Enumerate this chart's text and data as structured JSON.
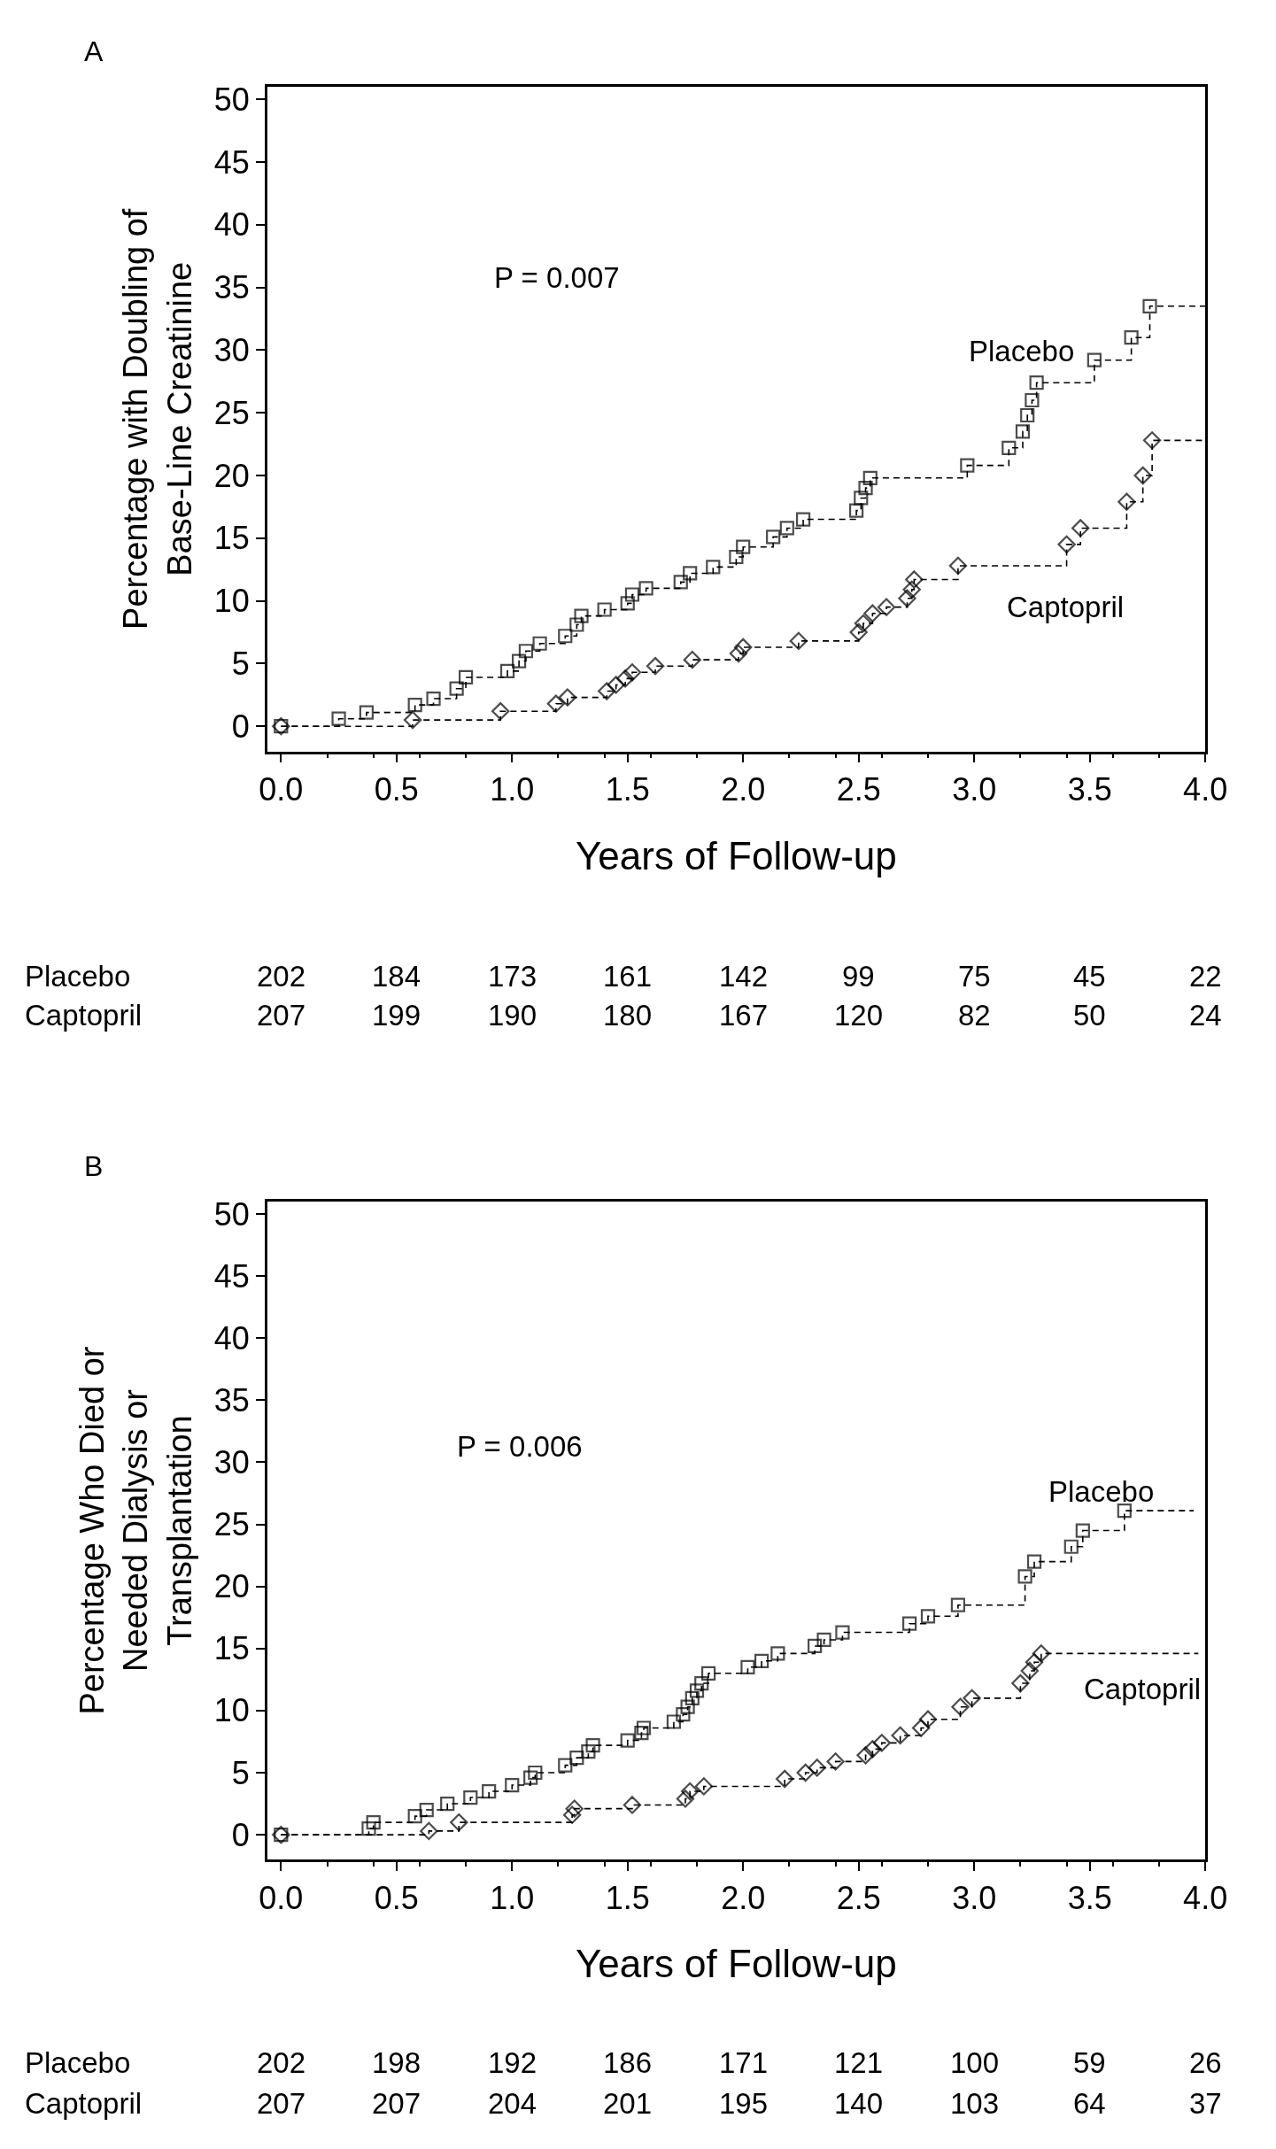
{
  "chart_data": [
    {
      "type": "step",
      "title": "A",
      "xlabel": "Years of Follow-up",
      "ylabel": "Percentage with Doubling of Base-Line Creatinine",
      "xlim": [
        -0.06,
        4.0
      ],
      "ylim": [
        -2,
        51
      ],
      "yticks": [
        0,
        5,
        10,
        15,
        20,
        25,
        30,
        35,
        40,
        45,
        50
      ],
      "xticks": [
        {
          "value": 0,
          "label": "0.0"
        },
        {
          "value": 0.5,
          "label": "0.5"
        },
        {
          "value": 1,
          "label": "1.0"
        },
        {
          "value": 1.5,
          "label": "1.5"
        },
        {
          "value": 2,
          "label": "2.0"
        },
        {
          "value": 2.5,
          "label": "2.5"
        },
        {
          "value": 3,
          "label": "3.0"
        },
        {
          "value": 3.5,
          "label": "3.5"
        },
        {
          "value": 4,
          "label": "4.0"
        }
      ],
      "line_style": "dashed",
      "series": [
        {
          "name": "Placebo",
          "color": "#000000",
          "marker": "square",
          "x": [
            0,
            0.25,
            0.37,
            0.58,
            0.66,
            0.76,
            0.8,
            0.98,
            1.03,
            1.06,
            1.12,
            1.23,
            1.28,
            1.3,
            1.4,
            1.5,
            1.52,
            1.58,
            1.73,
            1.77,
            1.87,
            1.97,
            2.0,
            2.13,
            2.19,
            2.26,
            2.49,
            2.51,
            2.53,
            2.55,
            2.97,
            3.15,
            3.21,
            3.23,
            3.25,
            3.27,
            3.52,
            3.68,
            3.76,
            4.0
          ],
          "values": [
            0,
            0.6,
            1.1,
            1.7,
            2.2,
            3.0,
            3.9,
            4.4,
            5.2,
            6.0,
            6.6,
            7.2,
            8.1,
            8.8,
            9.3,
            9.8,
            10.5,
            11.0,
            11.5,
            12.2,
            12.7,
            13.5,
            14.3,
            15.1,
            15.8,
            16.5,
            17.2,
            18.2,
            19.0,
            19.8,
            20.8,
            22.2,
            23.5,
            24.8,
            26.0,
            27.4,
            29.2,
            31.0,
            33.5,
            33.5
          ]
        },
        {
          "name": "Captopril",
          "color": "#000000",
          "marker": "diamond",
          "x": [
            0,
            0.57,
            0.95,
            1.19,
            1.24,
            1.41,
            1.45,
            1.49,
            1.52,
            1.62,
            1.78,
            1.98,
            2.0,
            2.24,
            2.5,
            2.52,
            2.56,
            2.62,
            2.71,
            2.73,
            2.74,
            2.93,
            3.4,
            3.46,
            3.66,
            3.73,
            3.77,
            4.0
          ],
          "values": [
            0,
            0.5,
            1.2,
            1.8,
            2.3,
            2.8,
            3.3,
            3.8,
            4.3,
            4.8,
            5.3,
            5.8,
            6.3,
            6.8,
            7.5,
            8.2,
            9.0,
            9.5,
            10.2,
            10.9,
            11.7,
            12.8,
            14.5,
            15.8,
            17.9,
            20.0,
            22.8,
            22.8
          ]
        }
      ],
      "annotations": [
        "P = 0.007",
        "Placebo",
        "202",
        "184",
        "173",
        "161",
        "142",
        "99",
        "75",
        "45",
        "22",
        "Captopril",
        "207",
        "199",
        "190",
        "180",
        "167",
        "120",
        "82",
        "50",
        "24"
      ]
    },
    {
      "type": "step",
      "title": "B",
      "xlabel": "Years of Follow-up",
      "ylabel": "Percentage Who Died or Needed Dialysis or Transplantation",
      "xlim": [
        -0.06,
        4.0
      ],
      "ylim": [
        -2,
        51
      ],
      "yticks": [
        0,
        5,
        10,
        15,
        20,
        25,
        30,
        35,
        40,
        45,
        50
      ],
      "xticks": [
        {
          "value": 0,
          "label": "0.0"
        },
        {
          "value": 0.5,
          "label": "0.5"
        },
        {
          "value": 1,
          "label": "1.0"
        },
        {
          "value": 1.5,
          "label": "1.5"
        },
        {
          "value": 2,
          "label": "2.0"
        },
        {
          "value": 2.5,
          "label": "2.5"
        },
        {
          "value": 3,
          "label": "3.0"
        },
        {
          "value": 3.5,
          "label": "3.5"
        },
        {
          "value": 4,
          "label": "4.0"
        }
      ],
      "line_style": "dashed",
      "series": [
        {
          "name": "Placebo",
          "color": "#000000",
          "marker": "square",
          "x": [
            0,
            0.38,
            0.4,
            0.58,
            0.63,
            0.72,
            0.82,
            0.9,
            1.0,
            1.08,
            1.1,
            1.23,
            1.28,
            1.33,
            1.35,
            1.5,
            1.56,
            1.57,
            1.7,
            1.74,
            1.76,
            1.78,
            1.8,
            1.82,
            1.85,
            2.02,
            2.08,
            2.15,
            2.31,
            2.35,
            2.43,
            2.72,
            2.8,
            2.93,
            3.22,
            3.26,
            3.42,
            3.47,
            3.65,
            3.95
          ],
          "values": [
            0,
            0.5,
            1.0,
            1.5,
            2.0,
            2.5,
            3.0,
            3.5,
            4.0,
            4.6,
            5.0,
            5.6,
            6.2,
            6.7,
            7.2,
            7.6,
            8.2,
            8.6,
            9.1,
            9.7,
            10.3,
            11.0,
            11.6,
            12.2,
            13.0,
            13.5,
            14.0,
            14.6,
            15.2,
            15.7,
            16.3,
            17.0,
            17.6,
            18.5,
            20.8,
            22.0,
            23.2,
            24.5,
            26.1,
            26.1
          ]
        },
        {
          "name": "Captopril",
          "color": "#000000",
          "marker": "diamond",
          "x": [
            0,
            0.64,
            0.77,
            1.26,
            1.27,
            1.52,
            1.75,
            1.77,
            1.83,
            2.18,
            2.27,
            2.32,
            2.4,
            2.53,
            2.56,
            2.6,
            2.68,
            2.77,
            2.8,
            2.94,
            2.99,
            3.2,
            3.24,
            3.26,
            3.29,
            3.97
          ],
          "values": [
            0,
            0.3,
            1.0,
            1.6,
            2.1,
            2.4,
            2.9,
            3.5,
            3.9,
            4.5,
            5.0,
            5.4,
            5.9,
            6.4,
            6.9,
            7.4,
            8.0,
            8.6,
            9.3,
            10.3,
            11.0,
            12.2,
            13.2,
            13.9,
            14.6,
            14.6
          ]
        }
      ],
      "annotations": [
        "P = 0.006",
        "Placebo",
        "202",
        "198",
        "192",
        "186",
        "171",
        "121",
        "100",
        "59",
        "26",
        "Captopril",
        "207",
        "207",
        "204",
        "201",
        "195",
        "140",
        "103",
        "64",
        "37"
      ]
    }
  ]
}
